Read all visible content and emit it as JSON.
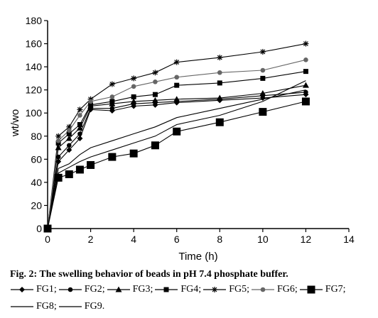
{
  "chart_data": {
    "type": "line",
    "xlabel": "Time (h)",
    "ylabel": "wt/wo",
    "xlim": [
      0,
      14
    ],
    "ylim": [
      0,
      180
    ],
    "xticks": [
      0,
      2,
      4,
      6,
      8,
      10,
      12,
      14
    ],
    "yticks": [
      0,
      20,
      40,
      60,
      80,
      100,
      120,
      140,
      160,
      180
    ],
    "grid": false,
    "legend_placement": "below",
    "series": [
      {
        "name": "FG1",
        "marker": "diamond",
        "color": "#000000",
        "x": [
          0,
          0.5,
          1,
          1.5,
          2,
          3,
          4,
          5,
          6,
          8,
          10,
          12
        ],
        "y": [
          0,
          58,
          68,
          78,
          103,
          102,
          106,
          107,
          109,
          111,
          113,
          116
        ]
      },
      {
        "name": "FG2",
        "marker": "circle",
        "color": "#000000",
        "x": [
          0,
          0.5,
          1,
          1.5,
          2,
          3,
          4,
          5,
          6,
          8,
          10,
          12
        ],
        "y": [
          0,
          62,
          72,
          82,
          104,
          104,
          108,
          109,
          110,
          112,
          115,
          118
        ]
      },
      {
        "name": "FG3",
        "marker": "triangle",
        "color": "#000000",
        "x": [
          0,
          0.5,
          1,
          1.5,
          2,
          3,
          4,
          5,
          6,
          8,
          10,
          12
        ],
        "y": [
          0,
          70,
          78,
          87,
          106,
          108,
          110,
          111,
          112,
          113,
          117,
          124
        ]
      },
      {
        "name": "FG4",
        "marker": "square",
        "color": "#000000",
        "x": [
          0,
          0.5,
          1,
          1.5,
          2,
          3,
          4,
          5,
          6,
          8,
          10,
          12
        ],
        "y": [
          0,
          74,
          82,
          90,
          107,
          110,
          114,
          116,
          124,
          126,
          130,
          136
        ]
      },
      {
        "name": "FG5",
        "marker": "star",
        "color": "#000000",
        "x": [
          0,
          0.5,
          1,
          1.5,
          2,
          3,
          4,
          5,
          6,
          8,
          10,
          12
        ],
        "y": [
          0,
          80,
          88,
          103,
          112,
          125,
          130,
          135,
          144,
          148,
          153,
          160
        ]
      },
      {
        "name": "FG6",
        "marker": "circle",
        "color": "#666666",
        "x": [
          0,
          0.5,
          1,
          1.5,
          2,
          3,
          4,
          5,
          6,
          8,
          10,
          12
        ],
        "y": [
          0,
          76,
          85,
          98,
          110,
          114,
          123,
          127,
          131,
          135,
          137,
          146
        ]
      },
      {
        "name": "FG7",
        "marker": "big-square",
        "color": "#000000",
        "x": [
          0,
          0.5,
          1,
          1.5,
          2,
          3,
          4,
          5,
          6,
          8,
          10,
          12
        ],
        "y": [
          0,
          44,
          47,
          51,
          55,
          62,
          65,
          72,
          84,
          92,
          101,
          110
        ]
      },
      {
        "name": "FG8",
        "marker": "none",
        "color": "#000000",
        "x": [
          0,
          0.5,
          1,
          1.5,
          2,
          3,
          4,
          5,
          6,
          8,
          10,
          12
        ],
        "y": [
          0,
          48,
          53,
          58,
          62,
          68,
          74,
          80,
          90,
          98,
          110,
          128
        ]
      },
      {
        "name": "FG9",
        "marker": "none",
        "color": "#000000",
        "x": [
          0,
          0.5,
          1,
          1.5,
          2,
          3,
          4,
          5,
          6,
          8,
          10,
          12
        ],
        "y": [
          0,
          52,
          56,
          64,
          70,
          76,
          82,
          88,
          96,
          104,
          112,
          120
        ]
      }
    ]
  },
  "caption": "Fig. 2: The swelling behavior of beads in pH 7.4 phosphate buffer.",
  "legend_items": [
    "FG1;",
    "FG2;",
    "FG3;",
    "FG4;",
    "FG5;",
    "FG6;",
    "FG7;",
    "FG8;",
    "FG9."
  ]
}
